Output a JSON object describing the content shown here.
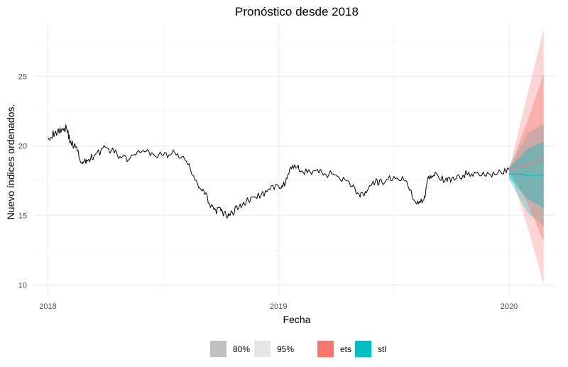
{
  "chart_data": {
    "type": "line",
    "title": "Pronóstico desde 2018",
    "xlabel": "Fecha",
    "ylabel": "Nuevo índices ordenados.",
    "xlim": [
      2017.94,
      2020.2
    ],
    "ylim": [
      9.2,
      28.8
    ],
    "x_ticks": [
      {
        "value": 2018,
        "label": "2018"
      },
      {
        "value": 2019,
        "label": "2019"
      },
      {
        "value": 2020,
        "label": "2020"
      }
    ],
    "y_ticks": [
      {
        "value": 10,
        "label": "10"
      },
      {
        "value": 15,
        "label": "15"
      },
      {
        "value": 20,
        "label": "20"
      },
      {
        "value": 25,
        "label": "25"
      }
    ],
    "grid": true,
    "legend_position": "bottom",
    "legend": {
      "intervals": [
        {
          "label": "80%",
          "color": "#bfbfbf"
        },
        {
          "label": "95%",
          "color": "#e6e6e6"
        }
      ],
      "models": [
        {
          "label": "ets",
          "color": "#f8766d"
        },
        {
          "label": "stl",
          "color": "#00bfc4"
        }
      ]
    },
    "series": [
      {
        "name": "",
        "color": "#000000",
        "x": [
          2018.0,
          2018.03,
          2018.06,
          2018.08,
          2018.1,
          2018.12,
          2018.15,
          2018.17,
          2018.2,
          2018.25,
          2018.3,
          2018.35,
          2018.4,
          2018.45,
          2018.5,
          2018.55,
          2018.6,
          2018.65,
          2018.68,
          2018.72,
          2018.75,
          2018.78,
          2018.8,
          2018.83,
          2018.86,
          2018.9,
          2018.95,
          2019.0,
          2019.03,
          2019.06,
          2019.1,
          2019.15,
          2019.2,
          2019.25,
          2019.3,
          2019.35,
          2019.38,
          2019.42,
          2019.45,
          2019.5,
          2019.55,
          2019.6,
          2019.63,
          2019.65,
          2019.68,
          2019.72,
          2019.75,
          2019.8,
          2019.85,
          2019.9,
          2019.95,
          2020.0
        ],
        "values": [
          20.6,
          20.9,
          21.2,
          21.3,
          20.2,
          19.9,
          18.7,
          18.9,
          19.3,
          19.9,
          19.4,
          19.0,
          19.5,
          19.5,
          19.3,
          19.5,
          18.9,
          17.2,
          16.5,
          15.4,
          15.3,
          14.9,
          15.2,
          15.7,
          16.0,
          16.3,
          16.7,
          17.1,
          17.3,
          18.6,
          18.2,
          18.2,
          18.0,
          17.9,
          17.5,
          16.5,
          16.6,
          17.4,
          17.3,
          17.8,
          17.5,
          15.8,
          16.1,
          17.8,
          18.1,
          17.4,
          17.6,
          17.9,
          18.1,
          17.8,
          18.0,
          18.3
        ]
      },
      {
        "name": "ets",
        "color": "#f8766d",
        "x": [
          2020.0,
          2020.08,
          2020.15
        ],
        "mean": [
          18.3,
          18.7,
          19.1
        ],
        "lo80": [
          18.3,
          15.9,
          13.1
        ],
        "hi80": [
          18.3,
          21.8,
          25.2
        ],
        "lo95": [
          18.3,
          14.2,
          10.0
        ],
        "hi95": [
          18.3,
          23.7,
          28.4
        ]
      },
      {
        "name": "stl",
        "color": "#00bfc4",
        "x": [
          2020.0,
          2020.08,
          2020.15
        ],
        "mean": [
          18.0,
          17.9,
          17.9
        ],
        "lo80": [
          17.7,
          16.2,
          15.5
        ],
        "hi80": [
          18.4,
          19.8,
          20.3
        ],
        "lo95": [
          17.6,
          15.2,
          14.2
        ],
        "hi95": [
          18.5,
          20.9,
          21.6
        ]
      }
    ]
  }
}
